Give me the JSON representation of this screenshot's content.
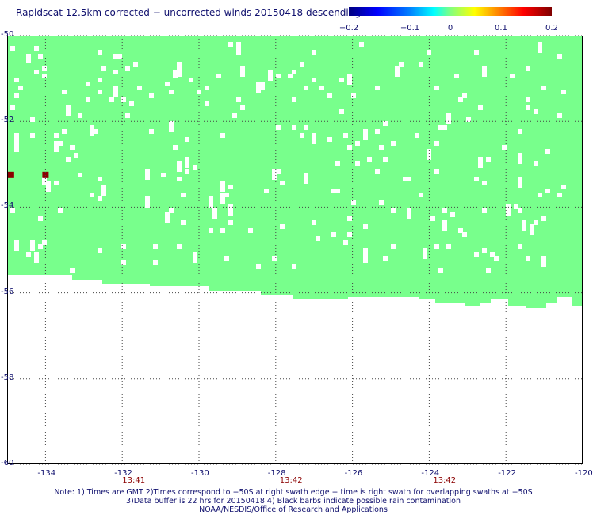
{
  "title": "Rapidscat 12.5km corrected − uncorrected winds 20150418 descending",
  "colorbar": {
    "labels": [
      "−0.2",
      "−0.1",
      "0",
      "0.1",
      "0.2"
    ]
  },
  "chart_data": {
    "type": "heatmap",
    "x_ticks": [
      "-134",
      "-132",
      "-130",
      "-128",
      "-126",
      "-124",
      "-122",
      "-120"
    ],
    "y_ticks": [
      "-50",
      "-52",
      "-54",
      "-56",
      "-58",
      "-60"
    ],
    "xlim": [
      -135,
      -120
    ],
    "ylim": [
      -60,
      -50
    ],
    "swath_value": 0,
    "swath_color": "#78ff8c",
    "flagged_cells": [
      {
        "lon": -134.9,
        "lat": -53.25,
        "value": 0.2
      },
      {
        "lon": -134.0,
        "lat": -53.25,
        "value": 0.2
      }
    ],
    "flagged_color": "#8b0000",
    "swath_times": [
      {
        "lon": -131.7,
        "label": "13:41"
      },
      {
        "lon": -127.6,
        "label": "13:42"
      },
      {
        "lon": -123.6,
        "label": "13:42"
      }
    ]
  },
  "notes": [
    "Note: 1) Times are GMT 2)Times correspond to −50S at right swath edge − time is right swath for overlapping swaths at −50S",
    "3)Data buffer is 22 hrs for 20150418 4) Black barbs indicate possible rain contamination",
    "NOAA/NESDIS/Office of Research and Applications"
  ]
}
